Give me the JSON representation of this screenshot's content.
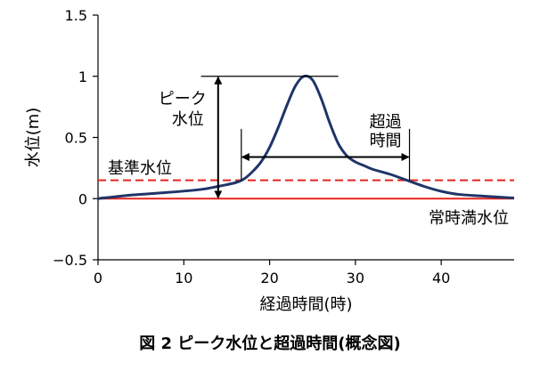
{
  "chart_data": {
    "type": "line",
    "caption": "図 2 ピーク水位と超過時間(概念図)",
    "xlabel": "経過時間(時)",
    "ylabel": "水位(m)",
    "xlim": [
      0,
      48.5
    ],
    "ylim": [
      -0.5,
      1.5
    ],
    "x_ticks": [
      0,
      10,
      20,
      30,
      40
    ],
    "y_ticks": [
      -0.5,
      0,
      0.5,
      1,
      1.5
    ],
    "x_tick_labels": [
      "0",
      "10",
      "20",
      "30",
      "40"
    ],
    "y_tick_labels": [
      "−0.5",
      "0",
      "0.5",
      "1",
      "1.5"
    ],
    "grid": false,
    "colors": {
      "series": "#1f3569",
      "reference": "#e8231f",
      "axis": "#000000"
    },
    "series": [
      {
        "x": [
          0,
          4,
          8,
          12,
          14,
          16,
          17,
          18,
          19,
          20,
          21,
          22,
          23,
          24,
          25,
          26,
          27,
          28,
          29,
          30,
          31,
          32,
          34,
          36,
          38,
          40,
          42,
          45,
          48.5
        ],
        "y": [
          0,
          0.03,
          0.05,
          0.075,
          0.1,
          0.13,
          0.16,
          0.22,
          0.3,
          0.42,
          0.58,
          0.76,
          0.92,
          1.0,
          0.97,
          0.82,
          0.62,
          0.45,
          0.35,
          0.3,
          0.27,
          0.24,
          0.2,
          0.15,
          0.1,
          0.06,
          0.035,
          0.02,
          0.005
        ]
      }
    ],
    "reference_lines": [
      {
        "label": "基準水位",
        "y": 0.15,
        "style": "dashed"
      },
      {
        "label": "常時満水位",
        "y": 0,
        "style": "solid"
      }
    ],
    "annotations": {
      "peak": {
        "label_line1": "ピーク",
        "label_line2": "水位",
        "x": 14,
        "y_from": 0,
        "y_to": 1.0,
        "top_line_x_from": 12,
        "top_line_x_to": 28
      },
      "exceed": {
        "label_line1": "超過",
        "label_line2": "時間",
        "x_from": 16.7,
        "x_to": 36.3,
        "y": 0.34,
        "tick_y_from": 0.15,
        "tick_y_to": 0.57
      }
    }
  }
}
